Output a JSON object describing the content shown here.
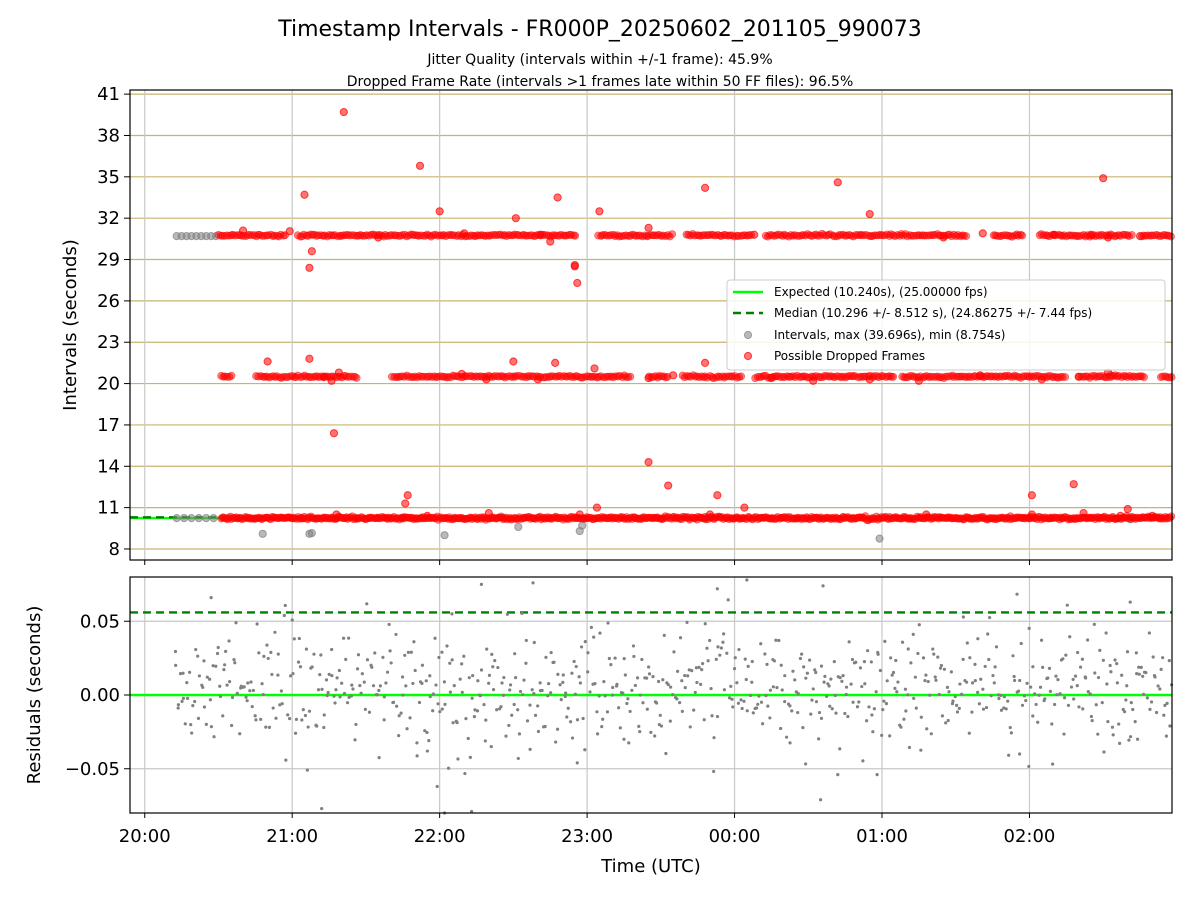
{
  "chart_data": [
    {
      "type": "scatter",
      "title": "Timestamp Intervals - FR000P_20250602_201105_990073",
      "subtitle_lines": [
        "Jitter Quality (intervals within +/-1 frame): 45.9%",
        "Dropped Frame Rate (intervals >1 frames late within 50 FF files): 96.5%"
      ],
      "xlabel": "",
      "ylabel": "Intervals (seconds)",
      "xlim": [
        "19:54",
        "02:58"
      ],
      "ylim": [
        7.2,
        41.3
      ],
      "yticks": [
        8,
        11,
        14,
        17,
        20,
        23,
        26,
        29,
        32,
        35,
        38,
        41
      ],
      "xticks": [
        "20:00",
        "21:00",
        "22:00",
        "23:00",
        "00:00",
        "01:00",
        "02:00"
      ],
      "grid": true,
      "reference_lines": [
        {
          "name": "Expected (10.240s), (25.00000 fps)",
          "y": 10.24,
          "style": "solid",
          "color": "#00ff00"
        },
        {
          "name": "Median (10.296 +/- 8.512 s), (24.86275 +/- 7.44 fps)",
          "y": 10.296,
          "style": "dashed",
          "color": "#008000"
        }
      ],
      "series": [
        {
          "name": "Intervals, max (39.696s), min (8.754s)",
          "color": "#808080",
          "points": [
            [
              "20:13",
              30.7
            ],
            [
              "20:15",
              30.7
            ],
            [
              "20:17",
              30.7
            ],
            [
              "20:19",
              30.7
            ],
            [
              "20:21",
              30.7
            ],
            [
              "20:23",
              30.7
            ],
            [
              "20:25",
              30.7
            ],
            [
              "20:27",
              30.7
            ],
            [
              "20:29",
              30.7
            ],
            [
              "20:13",
              10.24
            ],
            [
              "20:16",
              10.24
            ],
            [
              "20:19",
              10.24
            ],
            [
              "20:22",
              10.24
            ],
            [
              "20:25",
              10.24
            ],
            [
              "20:28",
              10.24
            ],
            [
              "20:48",
              9.1
            ],
            [
              "21:07",
              9.1
            ],
            [
              "21:08",
              9.15
            ],
            [
              "22:02",
              9.0
            ],
            [
              "22:32",
              9.6
            ],
            [
              "22:57",
              9.3
            ],
            [
              "22:58",
              9.7
            ],
            [
              "00:59",
              8.75
            ],
            [
              "21:18",
              10.2
            ],
            [
              "21:45",
              10.25
            ],
            [
              "22:25",
              10.35
            ],
            [
              "23:48",
              10.2
            ],
            [
              "02:35",
              10.2
            ],
            [
              "02:41",
              10.15
            ],
            [
              "02:33",
              20.6
            ]
          ]
        },
        {
          "name": "Possible Dropped Frames",
          "color": "#ff0000",
          "band_rows": [
            {
              "y": 30.75,
              "start": "20:30",
              "end": "02:58",
              "gaps": [
                [
                  "20:58",
                  "21:02"
                ],
                [
                  "22:56",
                  "23:04"
                ],
                [
                  "23:35",
                  "23:40"
                ],
                [
                  "00:07",
                  "00:12"
                ],
                [
                  "01:35",
                  "01:45"
                ],
                [
                  "01:58",
                  "02:04"
                ],
                [
                  "02:42",
                  "02:45"
                ]
              ]
            },
            {
              "y": 20.5,
              "start": "20:31",
              "end": "02:58",
              "gaps": [
                [
                  "20:36",
                  "20:45"
                ],
                [
                  "21:27",
                  "21:40"
                ],
                [
                  "23:18",
                  "23:25"
                ],
                [
                  "23:33",
                  "23:38"
                ],
                [
                  "00:03",
                  "00:08"
                ],
                [
                  "01:05",
                  "01:08"
                ],
                [
                  "02:15",
                  "02:20"
                ],
                [
                  "02:47",
                  "02:53"
                ]
              ]
            },
            {
              "y": 10.24,
              "start": "20:31",
              "end": "02:58",
              "gaps": []
            }
          ],
          "points": [
            [
              "20:40",
              31.1
            ],
            [
              "20:59",
              31.05
            ],
            [
              "21:05",
              33.7
            ],
            [
              "21:08",
              29.6
            ],
            [
              "21:07",
              28.4
            ],
            [
              "21:21",
              39.7
            ],
            [
              "21:35",
              30.6
            ],
            [
              "21:52",
              35.8
            ],
            [
              "22:00",
              32.5
            ],
            [
              "22:10",
              30.9
            ],
            [
              "22:31",
              32.0
            ],
            [
              "22:48",
              33.5
            ],
            [
              "22:41",
              30.8
            ],
            [
              "22:45",
              30.3
            ],
            [
              "22:55",
              28.5
            ],
            [
              "22:56",
              27.3
            ],
            [
              "22:55",
              28.6
            ],
            [
              "23:05",
              32.5
            ],
            [
              "23:25",
              31.3
            ],
            [
              "23:48",
              34.2
            ],
            [
              "00:08",
              30.8
            ],
            [
              "00:42",
              34.6
            ],
            [
              "00:55",
              32.3
            ],
            [
              "01:25",
              30.6
            ],
            [
              "01:41",
              30.9
            ],
            [
              "02:10",
              30.8
            ],
            [
              "02:25",
              30.8
            ],
            [
              "02:30",
              34.9
            ],
            [
              "02:32",
              30.6
            ],
            [
              "02:45",
              30.7
            ],
            [
              "20:50",
              21.6
            ],
            [
              "21:07",
              21.8
            ],
            [
              "21:13",
              20.5
            ],
            [
              "21:16",
              20.2
            ],
            [
              "21:19",
              20.8
            ],
            [
              "22:09",
              20.7
            ],
            [
              "22:19",
              20.3
            ],
            [
              "22:30",
              21.6
            ],
            [
              "22:40",
              20.3
            ],
            [
              "22:47",
              21.5
            ],
            [
              "23:03",
              21.1
            ],
            [
              "23:25",
              20.4
            ],
            [
              "23:35",
              20.6
            ],
            [
              "23:48",
              21.5
            ],
            [
              "00:15",
              20.4
            ],
            [
              "00:32",
              20.2
            ],
            [
              "00:55",
              20.3
            ],
            [
              "01:15",
              20.2
            ],
            [
              "01:40",
              20.6
            ],
            [
              "02:05",
              20.3
            ],
            [
              "02:20",
              20.5
            ],
            [
              "02:32",
              20.8
            ],
            [
              "21:17",
              16.4
            ],
            [
              "21:47",
              11.9
            ],
            [
              "21:46",
              11.3
            ],
            [
              "23:04",
              11.0
            ],
            [
              "23:25",
              14.3
            ],
            [
              "23:33",
              12.6
            ],
            [
              "23:53",
              11.9
            ],
            [
              "00:04",
              11.0
            ],
            [
              "02:01",
              11.9
            ],
            [
              "02:18",
              12.7
            ],
            [
              "02:40",
              10.9
            ],
            [
              "21:18",
              10.5
            ],
            [
              "21:55",
              10.4
            ],
            [
              "22:20",
              10.6
            ],
            [
              "22:57",
              10.5
            ],
            [
              "23:50",
              10.5
            ],
            [
              "01:18",
              10.5
            ],
            [
              "02:01",
              10.5
            ],
            [
              "02:22",
              10.6
            ],
            [
              "02:37",
              10.4
            ],
            [
              "02:50",
              10.4
            ]
          ]
        }
      ],
      "legend_entries": [
        "Expected (10.240s), (25.00000 fps)",
        "Median (10.296 +/- 8.512 s), (24.86275 +/- 7.44 fps)",
        "Intervals, max (39.696s), min (8.754s)",
        "Possible Dropped Frames"
      ],
      "legend_position": "center-right"
    },
    {
      "type": "scatter",
      "title": "",
      "xlabel": "Time (UTC)",
      "ylabel": "Residuals (seconds)",
      "xlim": [
        "19:54",
        "02:58"
      ],
      "ylim": [
        -0.08,
        0.08
      ],
      "yticks": [
        -0.05,
        0.0,
        0.05
      ],
      "ytick_labels": [
        "−0.05",
        "0.00",
        "0.05"
      ],
      "xticks": [
        "20:00",
        "21:00",
        "22:00",
        "23:00",
        "00:00",
        "01:00",
        "02:00"
      ],
      "grid": true,
      "reference_lines": [
        {
          "y": 0.0,
          "style": "solid",
          "color": "#00ff00"
        },
        {
          "y": 0.056,
          "style": "dashed",
          "color": "#008000"
        }
      ],
      "series": [
        {
          "name": "Residuals",
          "color": "#808080",
          "distribution": {
            "start": "20:12",
            "end": "02:58",
            "count": 760,
            "std": 0.02
          },
          "points": [
            [
              "20:27",
              0.066
            ],
            [
              "21:12",
              -0.077
            ],
            [
              "21:59",
              -0.062
            ],
            [
              "22:02",
              -0.08
            ],
            [
              "22:05",
              0.055
            ],
            [
              "22:13",
              -0.079
            ],
            [
              "22:17",
              0.075
            ],
            [
              "22:38",
              0.076
            ],
            [
              "23:53",
              0.072
            ],
            [
              "00:05",
              0.078
            ],
            [
              "00:35",
              -0.071
            ],
            [
              "00:36",
              0.074
            ],
            [
              "00:42",
              -0.054
            ],
            [
              "00:58",
              -0.054
            ],
            [
              "02:41",
              0.063
            ],
            [
              "21:55",
              -0.038
            ],
            [
              "22:21",
              -0.035
            ],
            [
              "22:32",
              -0.043
            ],
            [
              "22:56",
              -0.046
            ],
            [
              "23:15",
              -0.03
            ],
            [
              "01:56",
              -0.04
            ],
            [
              "02:44",
              -0.03
            ]
          ]
        }
      ]
    }
  ]
}
